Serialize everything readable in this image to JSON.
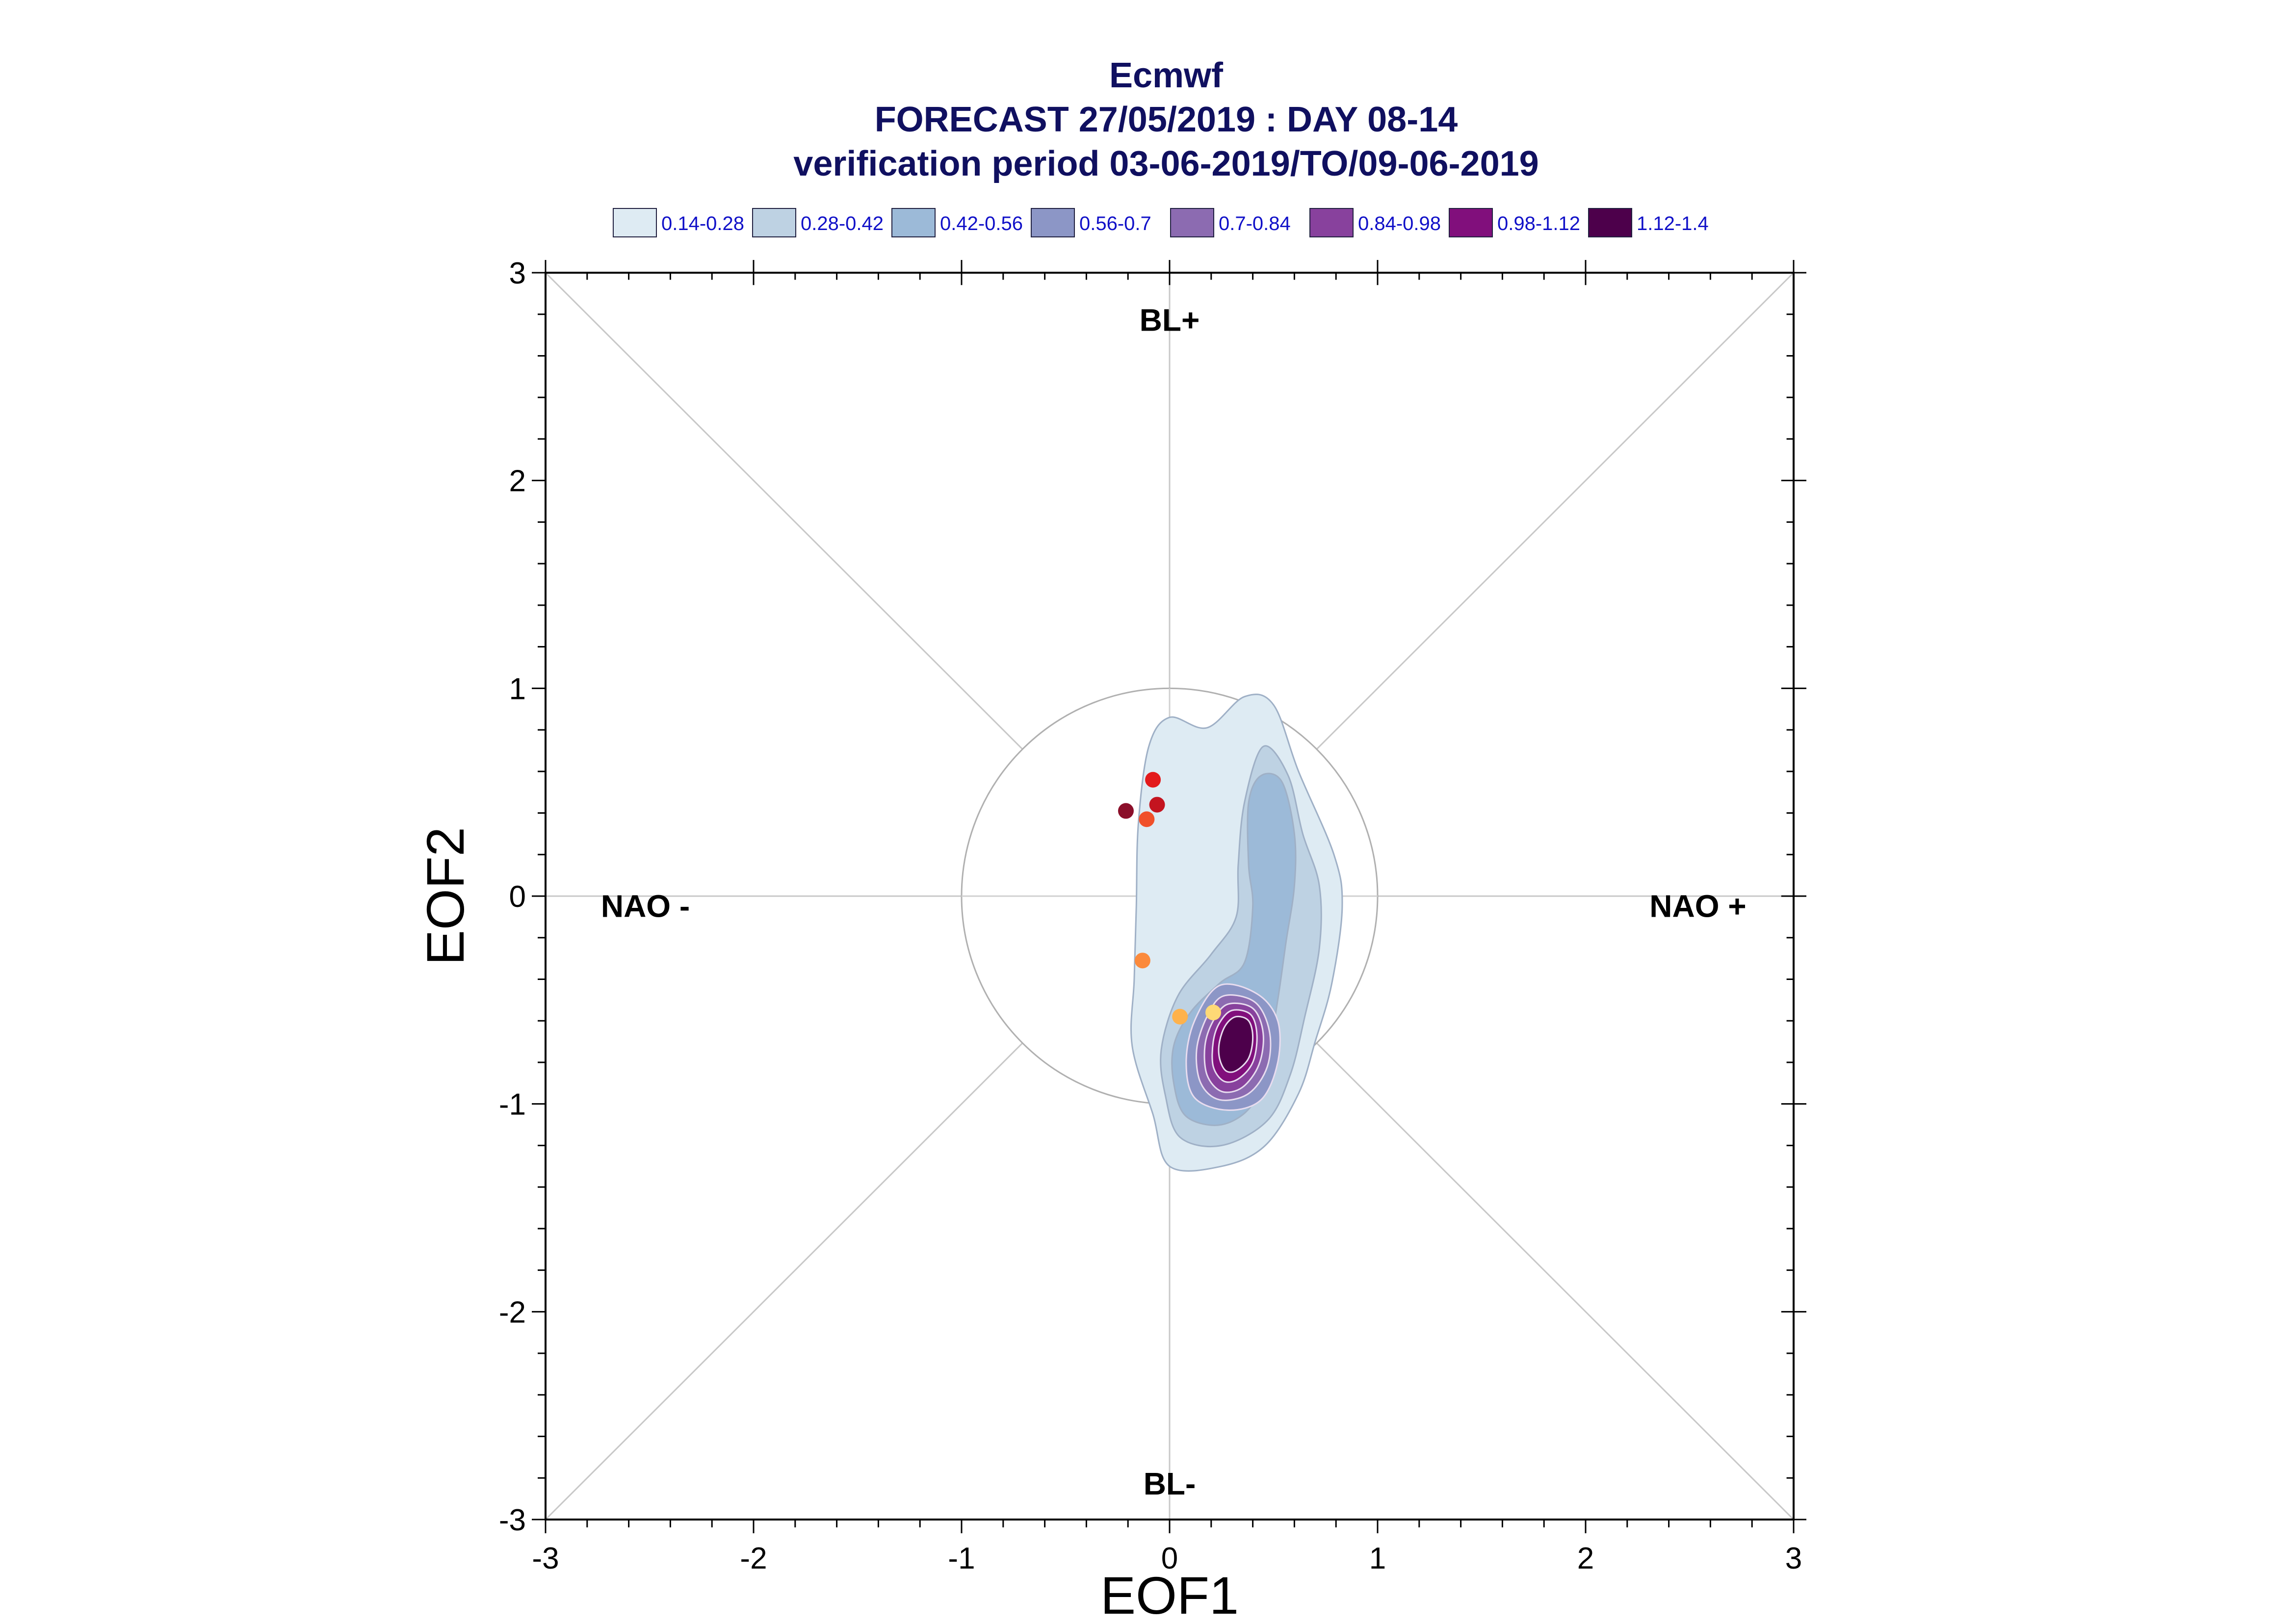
{
  "chart_data": {
    "type": "scatter",
    "title_lines": [
      "Ecmwf",
      "FORECAST 27/05/2019 : DAY 08-14",
      "verification period 03-06-2019/TO/09-06-2019"
    ],
    "xlabel": "EOF1",
    "ylabel": "EOF2",
    "xlim": [
      -3,
      3
    ],
    "ylim": [
      -3,
      3
    ],
    "xticks": [
      -3,
      -2,
      -1,
      0,
      1,
      2,
      3
    ],
    "yticks": [
      -3,
      -2,
      -1,
      0,
      1,
      2,
      3
    ],
    "xtick_labels": [
      "-3",
      "-2",
      "-1",
      "0",
      "1",
      "2",
      "3"
    ],
    "ytick_labels": [
      "-3",
      "-2",
      "-1",
      "0",
      "1",
      "2",
      "3"
    ],
    "regime_labels": [
      {
        "name": "regime-bl-plus",
        "text": "BL+",
        "x": 0,
        "y": 2.72
      },
      {
        "name": "regime-bl-minus",
        "text": "BL-",
        "x": 0,
        "y": -2.88
      },
      {
        "name": "regime-nao-minus",
        "text": "NAO -",
        "x": -2.52,
        "y": -0.1
      },
      {
        "name": "regime-nao-plus",
        "text": "NAO +",
        "x": 2.54,
        "y": -0.1
      }
    ],
    "unit_circle_radius": 1,
    "legend_position": "top",
    "legend": [
      {
        "label": "0.14-0.28",
        "color": "#deebf3"
      },
      {
        "label": "0.28-0.42",
        "color": "#bed2e3"
      },
      {
        "label": "0.42-0.56",
        "color": "#9cbad8"
      },
      {
        "label": "0.56-0.7",
        "color": "#8c96c6"
      },
      {
        "label": "0.7-0.84",
        "color": "#8c6bb1"
      },
      {
        "label": "0.84-0.98",
        "color": "#88419d"
      },
      {
        "label": "0.98-1.12",
        "color": "#810f7c"
      },
      {
        "label": "1.12-1.4",
        "color": "#4d004b"
      }
    ],
    "density_levels": [
      {
        "range": "0.14-0.28",
        "color": "#deebf3",
        "polygon": [
          [
            0.18,
            0.81
          ],
          [
            0.36,
            0.96
          ],
          [
            0.5,
            0.92
          ],
          [
            0.62,
            0.6
          ],
          [
            0.79,
            0.2
          ],
          [
            0.83,
            -0.05
          ],
          [
            0.78,
            -0.42
          ],
          [
            0.7,
            -0.7
          ],
          [
            0.62,
            -0.95
          ],
          [
            0.46,
            -1.2
          ],
          [
            0.25,
            -1.3
          ],
          [
            0.0,
            -1.3
          ],
          [
            -0.08,
            -1.05
          ],
          [
            -0.18,
            -0.72
          ],
          [
            -0.17,
            -0.4
          ],
          [
            -0.16,
            -0.05
          ],
          [
            -0.15,
            0.35
          ],
          [
            -0.1,
            0.72
          ],
          [
            0.0,
            0.86
          ]
        ]
      },
      {
        "range": "0.28-0.42",
        "color": "#bed2e3",
        "polygon": [
          [
            0.45,
            0.72
          ],
          [
            0.57,
            0.58
          ],
          [
            0.64,
            0.3
          ],
          [
            0.72,
            0.05
          ],
          [
            0.72,
            -0.25
          ],
          [
            0.65,
            -0.58
          ],
          [
            0.58,
            -0.86
          ],
          [
            0.47,
            -1.08
          ],
          [
            0.25,
            -1.2
          ],
          [
            0.05,
            -1.16
          ],
          [
            -0.02,
            -0.96
          ],
          [
            -0.04,
            -0.74
          ],
          [
            0.04,
            -0.48
          ],
          [
            0.2,
            -0.28
          ],
          [
            0.32,
            -0.1
          ],
          [
            0.33,
            0.15
          ],
          [
            0.36,
            0.45
          ]
        ]
      },
      {
        "range": "0.42-0.56",
        "color": "#9cbad8",
        "polygon": [
          [
            0.44,
            0.58
          ],
          [
            0.54,
            0.55
          ],
          [
            0.6,
            0.3
          ],
          [
            0.6,
            0.05
          ],
          [
            0.56,
            -0.22
          ],
          [
            0.52,
            -0.5
          ],
          [
            0.47,
            -0.78
          ],
          [
            0.4,
            -1.0
          ],
          [
            0.25,
            -1.1
          ],
          [
            0.08,
            -1.06
          ],
          [
            0.02,
            -0.9
          ],
          [
            0.02,
            -0.72
          ],
          [
            0.1,
            -0.56
          ],
          [
            0.24,
            -0.42
          ],
          [
            0.36,
            -0.32
          ],
          [
            0.4,
            -0.05
          ],
          [
            0.38,
            0.15
          ],
          [
            0.38,
            0.45
          ]
        ]
      },
      {
        "range": "0.56-0.7",
        "color": "#8c96c6",
        "polygon": [
          [
            0.24,
            -0.43
          ],
          [
            0.42,
            -0.47
          ],
          [
            0.52,
            -0.6
          ],
          [
            0.52,
            -0.8
          ],
          [
            0.44,
            -0.98
          ],
          [
            0.28,
            -1.03
          ],
          [
            0.12,
            -0.97
          ],
          [
            0.08,
            -0.8
          ],
          [
            0.12,
            -0.6
          ]
        ]
      },
      {
        "range": "0.7-0.84",
        "color": "#8c6bb1",
        "polygon": [
          [
            0.26,
            -0.48
          ],
          [
            0.41,
            -0.51
          ],
          [
            0.48,
            -0.65
          ],
          [
            0.47,
            -0.82
          ],
          [
            0.38,
            -0.95
          ],
          [
            0.24,
            -0.98
          ],
          [
            0.15,
            -0.9
          ],
          [
            0.13,
            -0.74
          ],
          [
            0.18,
            -0.58
          ]
        ]
      },
      {
        "range": "0.84-0.98",
        "color": "#88419d",
        "polygon": [
          [
            0.28,
            -0.52
          ],
          [
            0.4,
            -0.54
          ],
          [
            0.45,
            -0.66
          ],
          [
            0.43,
            -0.81
          ],
          [
            0.35,
            -0.92
          ],
          [
            0.25,
            -0.94
          ],
          [
            0.18,
            -0.86
          ],
          [
            0.17,
            -0.72
          ],
          [
            0.21,
            -0.6
          ]
        ]
      },
      {
        "range": "0.98-1.12",
        "color": "#810f7c",
        "polygon": [
          [
            0.3,
            -0.55
          ],
          [
            0.39,
            -0.57
          ],
          [
            0.42,
            -0.67
          ],
          [
            0.4,
            -0.8
          ],
          [
            0.33,
            -0.88
          ],
          [
            0.26,
            -0.89
          ],
          [
            0.21,
            -0.82
          ],
          [
            0.21,
            -0.7
          ],
          [
            0.24,
            -0.61
          ]
        ]
      },
      {
        "range": "1.12-1.4",
        "color": "#4d004b",
        "polygon": [
          [
            0.32,
            -0.58
          ],
          [
            0.38,
            -0.6
          ],
          [
            0.4,
            -0.68
          ],
          [
            0.38,
            -0.78
          ],
          [
            0.32,
            -0.84
          ],
          [
            0.27,
            -0.84
          ],
          [
            0.24,
            -0.78
          ],
          [
            0.24,
            -0.7
          ],
          [
            0.27,
            -0.62
          ]
        ]
      }
    ],
    "points": [
      {
        "x": -0.08,
        "y": 0.56,
        "color": "#e31a1c"
      },
      {
        "x": -0.06,
        "y": 0.44,
        "color": "#c4141f"
      },
      {
        "x": -0.21,
        "y": 0.41,
        "color": "#8b0f2a"
      },
      {
        "x": -0.11,
        "y": 0.37,
        "color": "#f0502a"
      },
      {
        "x": -0.13,
        "y": -0.31,
        "color": "#fb8a3c"
      },
      {
        "x": 0.05,
        "y": -0.58,
        "color": "#feb24c"
      },
      {
        "x": 0.21,
        "y": -0.56,
        "color": "#fed976"
      }
    ],
    "grid": "diagonals and zero lines"
  }
}
